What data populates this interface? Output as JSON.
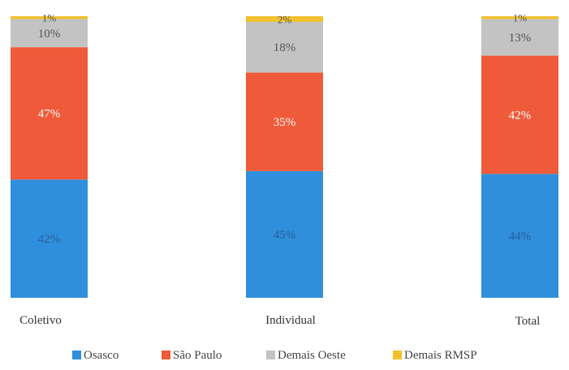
{
  "chart_data": {
    "type": "bar",
    "stacked": true,
    "percent": true,
    "categories": [
      "Coletivo",
      "Individual",
      "Total"
    ],
    "series": [
      {
        "name": "Osasco",
        "color": "#2f8fdc",
        "values": [
          42,
          45,
          44
        ]
      },
      {
        "name": "São Paulo",
        "color": "#ef5a3a",
        "values": [
          47,
          35,
          42
        ]
      },
      {
        "name": "Demais Oeste",
        "color": "#c3c3c3",
        "values": [
          10,
          18,
          13
        ]
      },
      {
        "name": "Demais RMSP",
        "color": "#f2c12e",
        "values": [
          1,
          2,
          1
        ]
      }
    ],
    "data_labels": [
      [
        "42%",
        "47%",
        "10%",
        "1%"
      ],
      [
        "45%",
        "35%",
        "18%",
        "2%"
      ],
      [
        "44%",
        "42%",
        "13%",
        "1%"
      ]
    ],
    "legend_position": "bottom",
    "grid": false
  }
}
